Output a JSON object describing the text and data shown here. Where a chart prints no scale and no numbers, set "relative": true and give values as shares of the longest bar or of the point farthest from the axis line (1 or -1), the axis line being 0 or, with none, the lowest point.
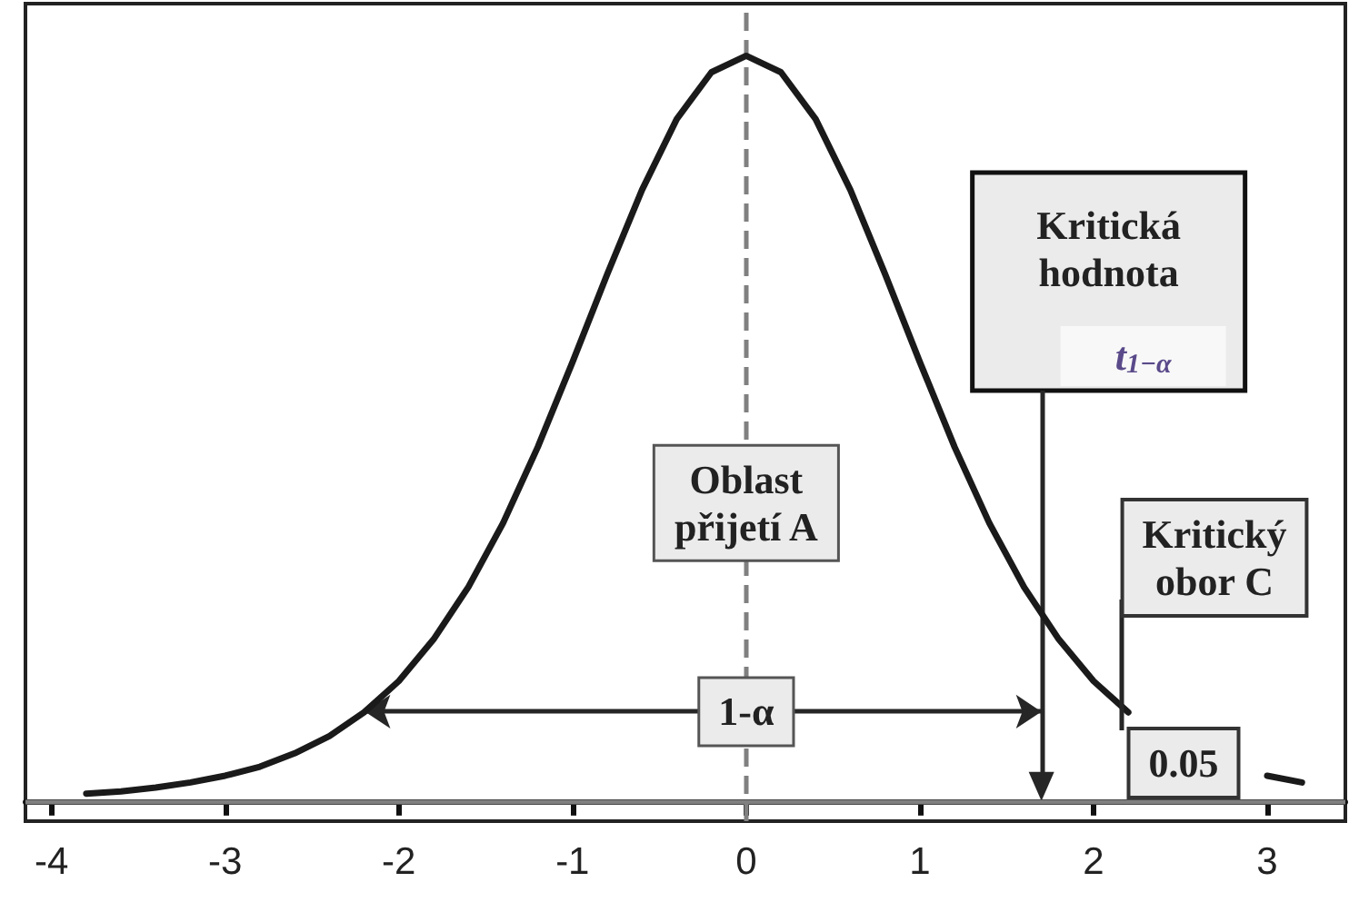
{
  "chart_data": {
    "type": "line",
    "relative": true,
    "x": [
      -3.8,
      -3.6,
      -3.4,
      -3.2,
      -3.0,
      -2.8,
      -2.6,
      -2.4,
      -2.2,
      -2.0,
      -1.8,
      -1.6,
      -1.4,
      -1.2,
      -1.0,
      -0.8,
      -0.6,
      -0.4,
      -0.2,
      0,
      0.2,
      0.4,
      0.6,
      0.8,
      1.0,
      1.2,
      1.4,
      1.6,
      1.8,
      2.0,
      2.2,
      2.4,
      2.6,
      2.8,
      3.0,
      3.2
    ],
    "series": [
      {
        "color": "#1a1a1a",
        "values": [
          0.01,
          0.013,
          0.018,
          0.025,
          0.034,
          0.046,
          0.064,
          0.087,
          0.119,
          0.161,
          0.217,
          0.287,
          0.373,
          0.475,
          0.589,
          0.707,
          0.82,
          0.915,
          0.978,
          1,
          0.978,
          0.915,
          0.82,
          0.707,
          0.589,
          0.475,
          0.373,
          0.287,
          0.217,
          0.161,
          0.119,
          null,
          null,
          null,
          0.034,
          0.025
        ]
      }
    ],
    "xlim": [
      -4.15,
      3.45
    ],
    "xticks": [
      -4,
      -3,
      -2,
      -1,
      0,
      1,
      2,
      3
    ],
    "ref_lines": [
      {
        "axis": "x",
        "value": 0,
        "color": "#808080",
        "line_style": "dashed"
      },
      {
        "axis": "y",
        "value": 0,
        "color": "#808080",
        "line_style": "solid"
      },
      {
        "axis": "x",
        "value": 1.7,
        "label": "t$_{1−α}$",
        "color": "#262626",
        "line_style": "solid"
      }
    ],
    "annotations": [
      "Kritická\nhodnota",
      {
        "text": "Oblast\npřijetí A",
        "x": 0,
        "y": 0.4
      },
      {
        "text": "1-α",
        "x": 0,
        "y": 0.12
      },
      "Kritický\nobor C",
      "0.05"
    ],
    "marker": "none",
    "line_style": "solid",
    "grid": false
  }
}
